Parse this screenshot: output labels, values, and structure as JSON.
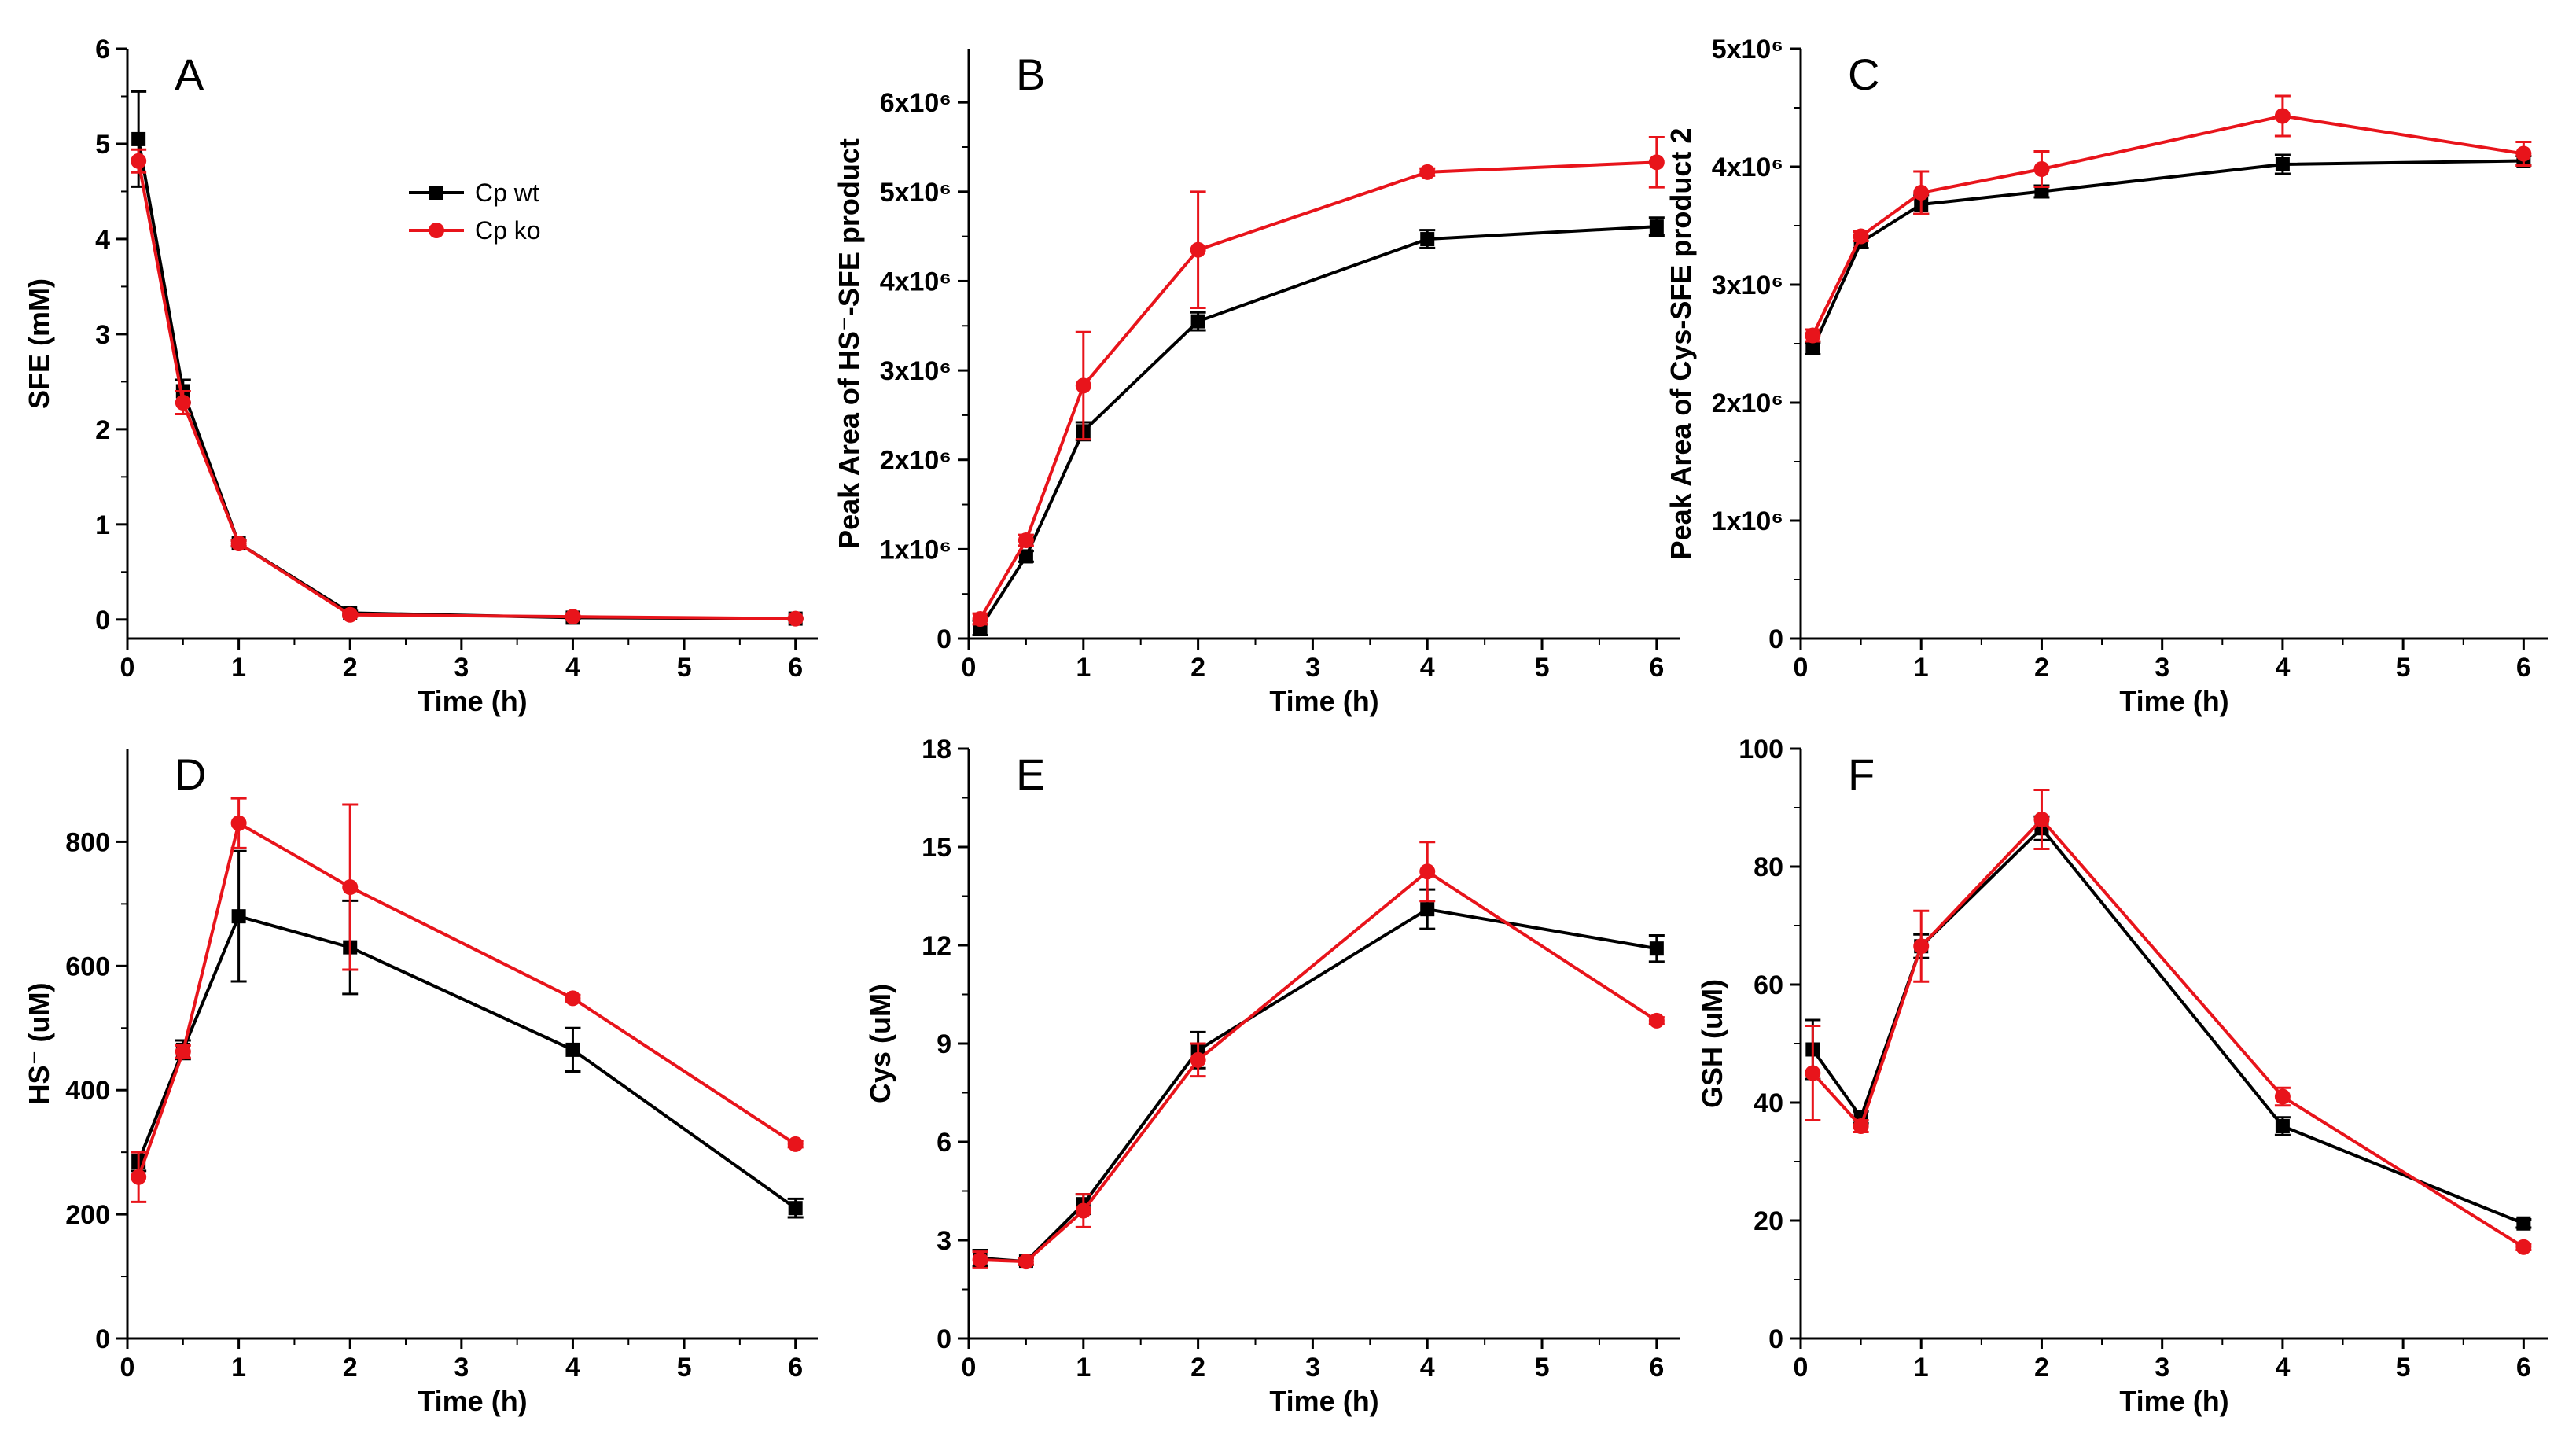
{
  "figure": {
    "description_panels": 6,
    "legend": {
      "placement": "panel A, top-center",
      "entries": [
        {
          "name": "Cp wt",
          "color": "#000000",
          "marker": "square"
        },
        {
          "name": "Cp ko",
          "color": "#e8141b",
          "marker": "circle"
        }
      ]
    }
  },
  "chart_data": [
    {
      "panel": "A",
      "type": "line",
      "xlabel": "Time (h)",
      "ylabel": "SFE (mM)",
      "xlim": [
        0,
        6.2
      ],
      "ylim": [
        -0.2,
        6
      ],
      "xticks": [
        0,
        1,
        2,
        3,
        4,
        5,
        6
      ],
      "yticks": [
        0,
        1,
        2,
        3,
        4,
        5,
        6
      ],
      "yticklabels": [
        "0",
        "1",
        "2",
        "3",
        "4",
        "5",
        "6"
      ],
      "x": [
        0.1,
        0.5,
        1,
        2,
        4,
        6
      ],
      "series": [
        {
          "name": "Cp wt",
          "color": "#000000",
          "marker": "square",
          "values": [
            5.05,
            2.4,
            0.8,
            0.07,
            0.02,
            0.01
          ],
          "err": [
            0.5,
            0.12,
            0.03,
            0.02,
            0.01,
            0.01
          ]
        },
        {
          "name": "Cp ko",
          "color": "#e8141b",
          "marker": "circle",
          "values": [
            4.82,
            2.28,
            0.8,
            0.05,
            0.03,
            0.01
          ],
          "err": [
            0.12,
            0.12,
            0.03,
            0.02,
            0.01,
            0.01
          ]
        }
      ]
    },
    {
      "panel": "B",
      "type": "line",
      "xlabel": "Time (h)",
      "ylabel": "Peak Area of HS⁻-SFE product",
      "xlim": [
        0,
        6.2
      ],
      "ylim": [
        0,
        6.6
      ],
      "xticks": [
        0,
        1,
        2,
        3,
        4,
        5,
        6
      ],
      "yticks": [
        0,
        1,
        2,
        3,
        4,
        5,
        6
      ],
      "yticklabels": [
        "0",
        "1x10⁶",
        "2x10⁶",
        "3x10⁶",
        "4x10⁶",
        "5x10⁶",
        "6x10⁶"
      ],
      "x": [
        0.1,
        0.5,
        1,
        2,
        4,
        6
      ],
      "series": [
        {
          "name": "Cp wt",
          "color": "#000000",
          "marker": "square",
          "values": [
            0.12,
            0.92,
            2.32,
            3.55,
            4.47,
            4.61
          ],
          "err": [
            0.08,
            0.06,
            0.1,
            0.1,
            0.1,
            0.1
          ]
        },
        {
          "name": "Cp ko",
          "color": "#e8141b",
          "marker": "circle",
          "values": [
            0.22,
            1.1,
            2.83,
            4.35,
            5.22,
            5.33
          ],
          "err": [
            0.06,
            0.06,
            0.6,
            0.65,
            0.04,
            0.28
          ]
        }
      ]
    },
    {
      "panel": "C",
      "type": "line",
      "xlabel": "Time (h)",
      "ylabel": "Peak Area of Cys-SFE product 2",
      "xlim": [
        0,
        6.2
      ],
      "ylim": [
        0,
        5
      ],
      "xticks": [
        0,
        1,
        2,
        3,
        4,
        5,
        6
      ],
      "yticks": [
        0,
        1,
        2,
        3,
        4,
        5
      ],
      "yticklabels": [
        "0",
        "1x10⁶",
        "2x10⁶",
        "3x10⁶",
        "4x10⁶",
        "5x10⁶"
      ],
      "x": [
        0.1,
        0.5,
        1,
        2,
        4,
        6
      ],
      "series": [
        {
          "name": "Cp wt",
          "color": "#000000",
          "marker": "square",
          "values": [
            2.46,
            3.36,
            3.68,
            3.79,
            4.02,
            4.05
          ],
          "err": [
            0.05,
            0.05,
            0.08,
            0.05,
            0.08,
            0.04
          ]
        },
        {
          "name": "Cp ko",
          "color": "#e8141b",
          "marker": "circle",
          "values": [
            2.57,
            3.41,
            3.78,
            3.98,
            4.43,
            4.11
          ],
          "err": [
            0.05,
            0.04,
            0.18,
            0.15,
            0.17,
            0.1
          ]
        }
      ]
    },
    {
      "panel": "D",
      "type": "line",
      "xlabel": "Time (h)",
      "ylabel": "HS⁻ (uM)",
      "xlim": [
        0,
        6.2
      ],
      "ylim": [
        0,
        950
      ],
      "xticks": [
        0,
        1,
        2,
        3,
        4,
        5,
        6
      ],
      "yticks": [
        0,
        200,
        400,
        600,
        800
      ],
      "yticklabels": [
        "0",
        "200",
        "400",
        "600",
        "800"
      ],
      "x": [
        0.1,
        0.5,
        1,
        2,
        4,
        6
      ],
      "series": [
        {
          "name": "Cp wt",
          "color": "#000000",
          "marker": "square",
          "values": [
            285,
            465,
            680,
            630,
            465,
            210
          ],
          "err": [
            15,
            15,
            105,
            75,
            35,
            15
          ]
        },
        {
          "name": "Cp ko",
          "color": "#e8141b",
          "marker": "circle",
          "values": [
            260,
            462,
            830,
            727,
            548,
            313
          ],
          "err": [
            40,
            10,
            40,
            133,
            5,
            5
          ]
        }
      ]
    },
    {
      "panel": "E",
      "type": "line",
      "xlabel": "Time (h)",
      "ylabel": "Cys (uM)",
      "xlim": [
        0,
        6.2
      ],
      "ylim": [
        0,
        18
      ],
      "xticks": [
        0,
        1,
        2,
        3,
        4,
        5,
        6
      ],
      "yticks": [
        0,
        3,
        6,
        9,
        12,
        15,
        18
      ],
      "yticklabels": [
        "0",
        "3",
        "6",
        "9",
        "12",
        "15",
        "18"
      ],
      "x": [
        0.1,
        0.5,
        1,
        2,
        4,
        6
      ],
      "series": [
        {
          "name": "Cp wt",
          "color": "#000000",
          "marker": "square",
          "values": [
            2.45,
            2.35,
            4.1,
            8.8,
            13.1,
            11.9
          ],
          "err": [
            0.25,
            0.1,
            0.3,
            0.55,
            0.6,
            0.4
          ]
        },
        {
          "name": "Cp ko",
          "color": "#e8141b",
          "marker": "circle",
          "values": [
            2.4,
            2.35,
            3.9,
            8.5,
            14.25,
            9.7
          ],
          "err": [
            0.25,
            0.1,
            0.5,
            0.5,
            0.9,
            0.1
          ]
        }
      ]
    },
    {
      "panel": "F",
      "type": "line",
      "xlabel": "Time (h)",
      "ylabel": "GSH (uM)",
      "xlim": [
        0,
        6.2
      ],
      "ylim": [
        0,
        100
      ],
      "xticks": [
        0,
        1,
        2,
        3,
        4,
        5,
        6
      ],
      "yticks": [
        0,
        20,
        40,
        60,
        80,
        100
      ],
      "yticklabels": [
        "0",
        "20",
        "40",
        "60",
        "80",
        "100"
      ],
      "x": [
        0.1,
        0.5,
        1,
        2,
        4,
        6
      ],
      "series": [
        {
          "name": "Cp wt",
          "color": "#000000",
          "marker": "square",
          "values": [
            49,
            37.5,
            66.5,
            86.5,
            36,
            19.5
          ],
          "err": [
            5,
            1,
            2,
            2,
            1.5,
            0.7
          ]
        },
        {
          "name": "Cp ko",
          "color": "#e8141b",
          "marker": "circle",
          "values": [
            45,
            36,
            66.5,
            88,
            41,
            15.5
          ],
          "err": [
            8,
            1,
            6,
            5,
            1.5,
            0.5
          ]
        }
      ]
    }
  ]
}
